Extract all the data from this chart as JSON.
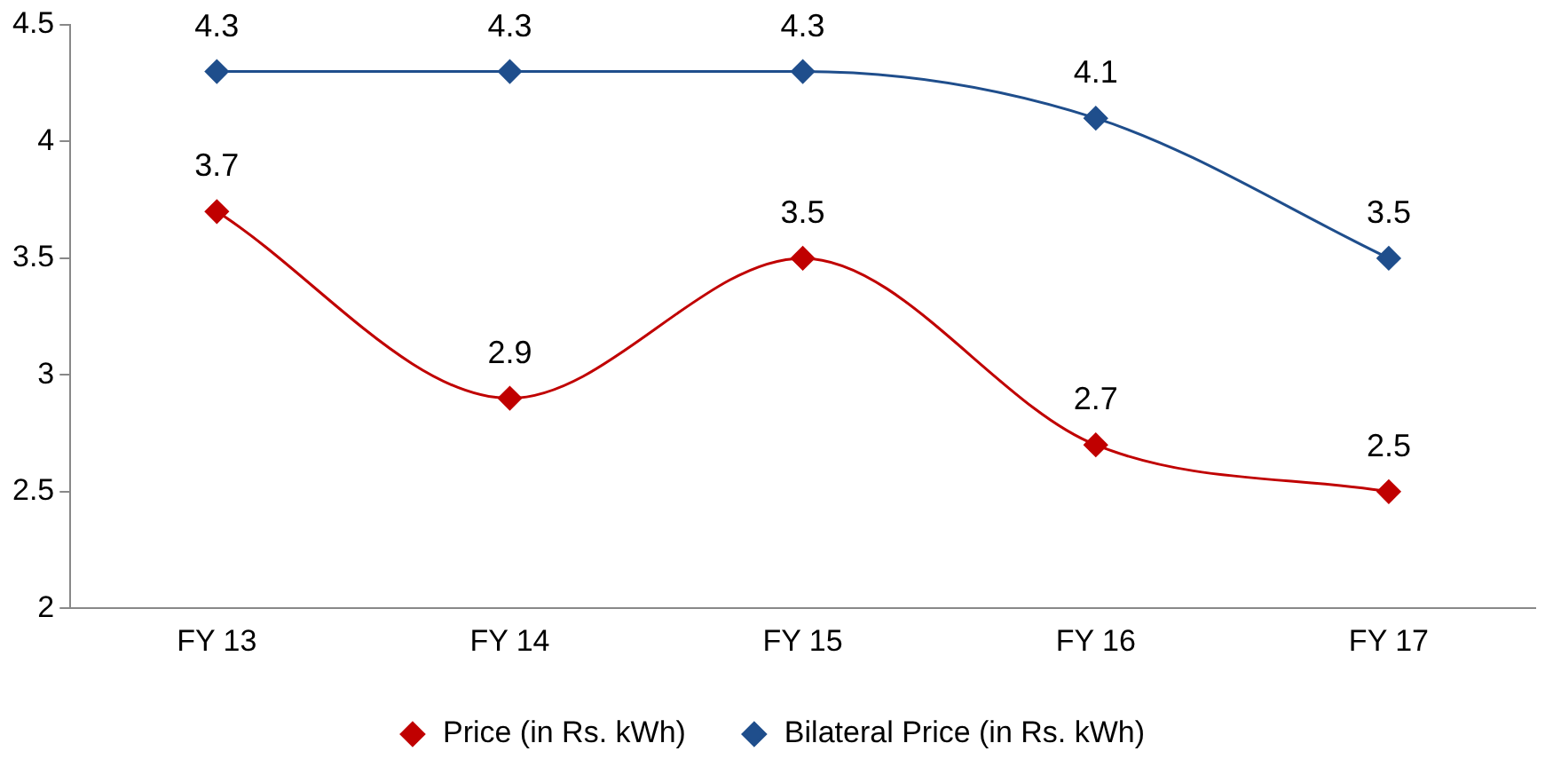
{
  "chart_data": {
    "type": "line",
    "categories": [
      "FY 13",
      "FY 14",
      "FY 15",
      "FY 16",
      "FY 17"
    ],
    "series": [
      {
        "name": "Price (in Rs. kWh)",
        "color": "#c00000",
        "values": [
          3.7,
          2.9,
          3.5,
          2.7,
          2.5
        ]
      },
      {
        "name": "Bilateral Price (in Rs. kWh)",
        "color": "#1f4e8c",
        "values": [
          4.3,
          4.3,
          4.3,
          4.1,
          3.5
        ]
      }
    ],
    "ylim": [
      2,
      4.5
    ],
    "yticks": [
      2,
      2.5,
      3,
      3.5,
      4,
      4.5
    ],
    "grid": false,
    "legend": "bottom",
    "marker": "diamond",
    "line_style": "solid",
    "data_labels": true
  }
}
